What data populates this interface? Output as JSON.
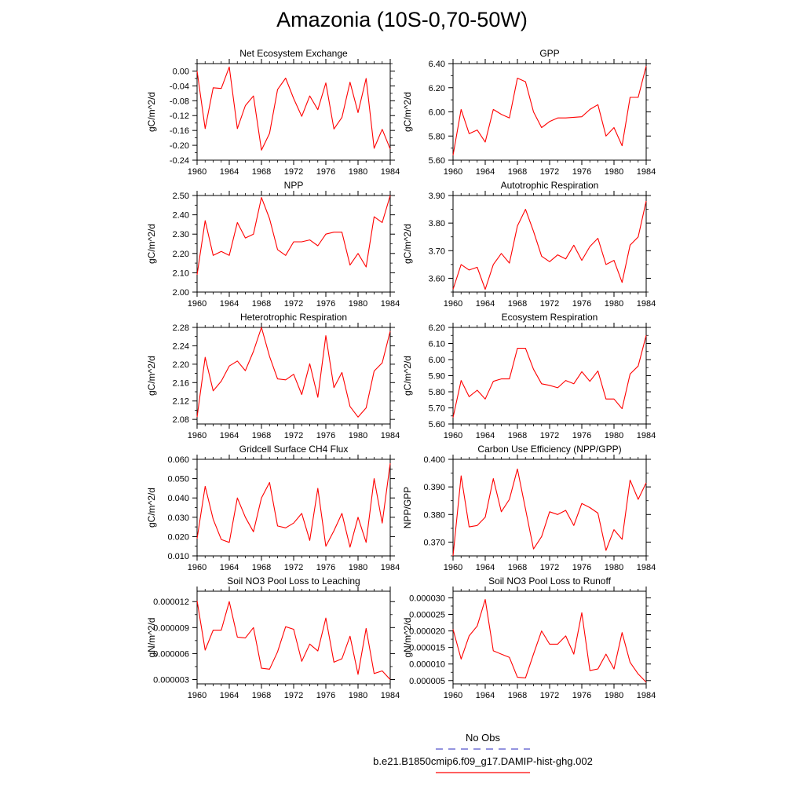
{
  "page": {
    "title": "Amazonia (10S-0,70-50W)"
  },
  "legend": {
    "entries": [
      {
        "label": "No Obs",
        "color": "#5555cc",
        "dash": "dashed"
      },
      {
        "label": "b.e21.B1850cmip6.f09_g17.DAMIP-hist-ghg.002",
        "color": "#ff0000",
        "dash": "solid"
      }
    ]
  },
  "chart_data": [
    {
      "type": "line",
      "title": "Net Ecosystem Exchange",
      "ylabel": "gC/m^2/d",
      "xlim": [
        1960,
        1984
      ],
      "ylim": [
        -0.24,
        0.02
      ],
      "xticks": [
        1960,
        1964,
        1968,
        1972,
        1976,
        1980,
        1984
      ],
      "yticks": [
        -0.24,
        -0.2,
        -0.16,
        -0.12,
        -0.08,
        -0.04,
        0.0
      ],
      "ytick_labels": [
        "-0.24",
        "-0.20",
        "-0.16",
        "-0.12",
        "-0.08",
        "-0.04",
        "0.00"
      ],
      "grid": false,
      "series": [
        {
          "color": "#ff0000",
          "x": [
            1960,
            1961,
            1962,
            1963,
            1964,
            1965,
            1966,
            1967,
            1968,
            1969,
            1970,
            1971,
            1972,
            1973,
            1974,
            1975,
            1976,
            1977,
            1978,
            1979,
            1980,
            1981,
            1982,
            1983,
            1984
          ],
          "y": [
            0.0,
            -0.155,
            -0.045,
            -0.047,
            0.011,
            -0.155,
            -0.093,
            -0.067,
            -0.213,
            -0.168,
            -0.05,
            -0.019,
            -0.074,
            -0.122,
            -0.067,
            -0.104,
            -0.032,
            -0.156,
            -0.125,
            -0.03,
            -0.112,
            -0.02,
            -0.208,
            -0.157,
            -0.21
          ]
        }
      ]
    },
    {
      "type": "line",
      "title": "GPP",
      "ylabel": "gC/m^2/d",
      "xlim": [
        1960,
        1984
      ],
      "ylim": [
        5.6,
        6.4
      ],
      "xticks": [
        1960,
        1964,
        1968,
        1972,
        1976,
        1980,
        1984
      ],
      "yticks": [
        5.6,
        5.8,
        6.0,
        6.2,
        6.4
      ],
      "ytick_labels": [
        "5.60",
        "5.80",
        "6.00",
        "6.20",
        "6.40"
      ],
      "grid": false,
      "series": [
        {
          "color": "#ff0000",
          "x": [
            1960,
            1961,
            1962,
            1963,
            1964,
            1965,
            1966,
            1967,
            1968,
            1969,
            1970,
            1971,
            1972,
            1973,
            1974,
            1975,
            1976,
            1977,
            1978,
            1979,
            1980,
            1981,
            1982,
            1983,
            1984
          ],
          "y": [
            5.64,
            6.02,
            5.82,
            5.85,
            5.75,
            6.02,
            5.98,
            5.95,
            6.28,
            6.25,
            6.0,
            5.87,
            5.92,
            5.95,
            5.95,
            5.955,
            5.96,
            6.02,
            6.06,
            5.8,
            5.87,
            5.72,
            6.12,
            6.12,
            6.38
          ]
        }
      ]
    },
    {
      "type": "line",
      "title": "NPP",
      "ylabel": "gC/m^2/d",
      "xlim": [
        1960,
        1984
      ],
      "ylim": [
        2.0,
        2.5
      ],
      "xticks": [
        1960,
        1964,
        1968,
        1972,
        1976,
        1980,
        1984
      ],
      "yticks": [
        2.0,
        2.1,
        2.2,
        2.3,
        2.4,
        2.5
      ],
      "ytick_labels": [
        "2.00",
        "2.10",
        "2.20",
        "2.30",
        "2.40",
        "2.50"
      ],
      "grid": false,
      "series": [
        {
          "color": "#ff0000",
          "x": [
            1960,
            1961,
            1962,
            1963,
            1964,
            1965,
            1966,
            1967,
            1968,
            1969,
            1970,
            1971,
            1972,
            1973,
            1974,
            1975,
            1976,
            1977,
            1978,
            1979,
            1980,
            1981,
            1982,
            1983,
            1984
          ],
          "y": [
            2.09,
            2.37,
            2.19,
            2.21,
            2.19,
            2.36,
            2.28,
            2.3,
            2.49,
            2.38,
            2.22,
            2.19,
            2.26,
            2.26,
            2.27,
            2.24,
            2.3,
            2.31,
            2.31,
            2.14,
            2.2,
            2.13,
            2.39,
            2.36,
            2.5
          ]
        }
      ]
    },
    {
      "type": "line",
      "title": "Autotrophic Respiration",
      "ylabel": "gC/m^2/d",
      "xlim": [
        1960,
        1984
      ],
      "ylim": [
        3.55,
        3.9
      ],
      "xticks": [
        1960,
        1964,
        1968,
        1972,
        1976,
        1980,
        1984
      ],
      "yticks": [
        3.6,
        3.7,
        3.8,
        3.9
      ],
      "ytick_labels": [
        "3.60",
        "3.70",
        "3.80",
        "3.90"
      ],
      "grid": false,
      "series": [
        {
          "color": "#ff0000",
          "x": [
            1960,
            1961,
            1962,
            1963,
            1964,
            1965,
            1966,
            1967,
            1968,
            1969,
            1970,
            1971,
            1972,
            1973,
            1974,
            1975,
            1976,
            1977,
            1978,
            1979,
            1980,
            1981,
            1982,
            1983,
            1984
          ],
          "y": [
            3.56,
            3.65,
            3.63,
            3.64,
            3.56,
            3.65,
            3.69,
            3.655,
            3.79,
            3.85,
            3.77,
            3.68,
            3.66,
            3.685,
            3.67,
            3.72,
            3.665,
            3.715,
            3.745,
            3.65,
            3.665,
            3.585,
            3.72,
            3.75,
            3.88
          ]
        }
      ]
    },
    {
      "type": "line",
      "title": "Heterotrophic Respiration",
      "ylabel": "gC/m^2/d",
      "xlim": [
        1960,
        1984
      ],
      "ylim": [
        2.07,
        2.28
      ],
      "xticks": [
        1960,
        1964,
        1968,
        1972,
        1976,
        1980,
        1984
      ],
      "yticks": [
        2.08,
        2.12,
        2.16,
        2.2,
        2.24,
        2.28
      ],
      "ytick_labels": [
        "2.08",
        "2.12",
        "2.16",
        "2.20",
        "2.24",
        "2.28"
      ],
      "grid": false,
      "series": [
        {
          "color": "#ff0000",
          "x": [
            1960,
            1961,
            1962,
            1963,
            1964,
            1965,
            1966,
            1967,
            1968,
            1969,
            1970,
            1971,
            1972,
            1973,
            1974,
            1975,
            1976,
            1977,
            1978,
            1979,
            1980,
            1981,
            1982,
            1983,
            1984
          ],
          "y": [
            2.085,
            2.215,
            2.142,
            2.163,
            2.196,
            2.207,
            2.186,
            2.228,
            2.28,
            2.217,
            2.168,
            2.166,
            2.178,
            2.134,
            2.201,
            2.128,
            2.262,
            2.149,
            2.182,
            2.108,
            2.085,
            2.105,
            2.185,
            2.203,
            2.272
          ]
        }
      ]
    },
    {
      "type": "line",
      "title": "Ecosystem Respiration",
      "ylabel": "gC/m^2/d",
      "xlim": [
        1960,
        1984
      ],
      "ylim": [
        5.6,
        6.2
      ],
      "xticks": [
        1960,
        1964,
        1968,
        1972,
        1976,
        1980,
        1984
      ],
      "yticks": [
        5.6,
        5.7,
        5.8,
        5.9,
        6.0,
        6.1,
        6.2
      ],
      "ytick_labels": [
        "5.60",
        "5.70",
        "5.80",
        "5.90",
        "6.00",
        "6.10",
        "6.20"
      ],
      "grid": false,
      "series": [
        {
          "color": "#ff0000",
          "x": [
            1960,
            1961,
            1962,
            1963,
            1964,
            1965,
            1966,
            1967,
            1968,
            1969,
            1970,
            1971,
            1972,
            1973,
            1974,
            1975,
            1976,
            1977,
            1978,
            1979,
            1980,
            1981,
            1982,
            1983,
            1984
          ],
          "y": [
            5.64,
            5.87,
            5.77,
            5.81,
            5.755,
            5.865,
            5.88,
            5.88,
            6.07,
            6.07,
            5.94,
            5.85,
            5.84,
            5.825,
            5.87,
            5.85,
            5.925,
            5.865,
            5.93,
            5.755,
            5.755,
            5.695,
            5.91,
            5.96,
            6.15
          ]
        }
      ]
    },
    {
      "type": "line",
      "title": "Gridcell Surface CH4 Flux",
      "ylabel": "gC/m^2/d",
      "xlim": [
        1960,
        1984
      ],
      "ylim": [
        0.01,
        0.06
      ],
      "xticks": [
        1960,
        1964,
        1968,
        1972,
        1976,
        1980,
        1984
      ],
      "yticks": [
        0.01,
        0.02,
        0.03,
        0.04,
        0.05,
        0.06
      ],
      "ytick_labels": [
        "0.010",
        "0.020",
        "0.030",
        "0.040",
        "0.050",
        "0.060"
      ],
      "grid": false,
      "series": [
        {
          "color": "#ff0000",
          "x": [
            1960,
            1961,
            1962,
            1963,
            1964,
            1965,
            1966,
            1967,
            1968,
            1969,
            1970,
            1971,
            1972,
            1973,
            1974,
            1975,
            1976,
            1977,
            1978,
            1979,
            1980,
            1981,
            1982,
            1983,
            1984
          ],
          "y": [
            0.019,
            0.046,
            0.029,
            0.0185,
            0.017,
            0.04,
            0.03,
            0.0225,
            0.04,
            0.048,
            0.0255,
            0.0245,
            0.027,
            0.032,
            0.018,
            0.045,
            0.015,
            0.023,
            0.032,
            0.0145,
            0.03,
            0.017,
            0.05,
            0.027,
            0.058
          ]
        }
      ]
    },
    {
      "type": "line",
      "title": "Carbon Use Efficiency (NPP/GPP)",
      "ylabel": "NPP/GPP",
      "xlim": [
        1960,
        1984
      ],
      "ylim": [
        0.365,
        0.4
      ],
      "xticks": [
        1960,
        1964,
        1968,
        1972,
        1976,
        1980,
        1984
      ],
      "yticks": [
        0.37,
        0.38,
        0.39,
        0.4
      ],
      "ytick_labels": [
        "0.370",
        "0.380",
        "0.390",
        "0.400"
      ],
      "grid": false,
      "series": [
        {
          "color": "#ff0000",
          "x": [
            1960,
            1961,
            1962,
            1963,
            1964,
            1965,
            1966,
            1967,
            1968,
            1969,
            1970,
            1971,
            1972,
            1973,
            1974,
            1975,
            1976,
            1977,
            1978,
            1979,
            1980,
            1981,
            1982,
            1983,
            1984
          ],
          "y": [
            0.365,
            0.394,
            0.3755,
            0.376,
            0.379,
            0.393,
            0.381,
            0.3855,
            0.3965,
            0.382,
            0.3675,
            0.372,
            0.381,
            0.38,
            0.3815,
            0.376,
            0.384,
            0.3825,
            0.3805,
            0.367,
            0.3745,
            0.371,
            0.3925,
            0.3855,
            0.3915
          ]
        }
      ]
    },
    {
      "type": "line",
      "title": "Soil NO3 Pool Loss to Leaching",
      "ylabel": "gN/m^2/d",
      "xlim": [
        1960,
        1984
      ],
      "ylim": [
        2.5e-06,
        1.32e-05
      ],
      "xticks": [
        1960,
        1964,
        1968,
        1972,
        1976,
        1980,
        1984
      ],
      "yticks": [
        3e-06,
        6e-06,
        9e-06,
        1.2e-05
      ],
      "ytick_labels": [
        "0.000003",
        "0.000006",
        "0.000009",
        "0.000012"
      ],
      "grid": false,
      "series": [
        {
          "color": "#ff0000",
          "x": [
            1960,
            1961,
            1962,
            1963,
            1964,
            1965,
            1966,
            1967,
            1968,
            1969,
            1970,
            1971,
            1972,
            1973,
            1974,
            1975,
            1976,
            1977,
            1978,
            1979,
            1980,
            1981,
            1982,
            1983,
            1984
          ],
          "y": [
            1.21e-05,
            6.4e-06,
            8.7e-06,
            8.7e-06,
            1.2e-05,
            7.9e-06,
            7.8e-06,
            9e-06,
            4.3e-06,
            4.2e-06,
            6.2e-06,
            9.1e-06,
            8.8e-06,
            5.1e-06,
            7.1e-06,
            6.3e-06,
            1.01e-05,
            5e-06,
            5.4e-06,
            8e-06,
            3.6e-06,
            8.9e-06,
            3.7e-06,
            4e-06,
            3e-06
          ]
        }
      ]
    },
    {
      "type": "line",
      "title": "Soil NO3 Pool Loss to Runoff",
      "ylabel": "gN/m^2/d",
      "xlim": [
        1960,
        1984
      ],
      "ylim": [
        4e-06,
        3.2e-05
      ],
      "xticks": [
        1960,
        1964,
        1968,
        1972,
        1976,
        1980,
        1984
      ],
      "yticks": [
        5e-06,
        1e-05,
        1.5e-05,
        2e-05,
        2.5e-05,
        3e-05
      ],
      "ytick_labels": [
        "0.000005",
        "0.000010",
        "0.000015",
        "0.000020",
        "0.000025",
        "0.000030"
      ],
      "grid": false,
      "series": [
        {
          "color": "#ff0000",
          "x": [
            1960,
            1961,
            1962,
            1963,
            1964,
            1965,
            1966,
            1967,
            1968,
            1969,
            1970,
            1971,
            1972,
            1973,
            1974,
            1975,
            1976,
            1977,
            1978,
            1979,
            1980,
            1981,
            1982,
            1983,
            1984
          ],
          "y": [
            2.05e-05,
            1.15e-05,
            1.85e-05,
            2.15e-05,
            2.95e-05,
            1.4e-05,
            1.3e-05,
            1.2e-05,
            6e-06,
            5.8e-06,
            1.3e-05,
            2e-05,
            1.6e-05,
            1.6e-05,
            1.85e-05,
            1.3e-05,
            2.55e-05,
            8e-06,
            8.5e-06,
            1.3e-05,
            8.5e-06,
            1.95e-05,
            1.05e-05,
            7e-06,
            4.5e-06
          ]
        }
      ]
    }
  ]
}
